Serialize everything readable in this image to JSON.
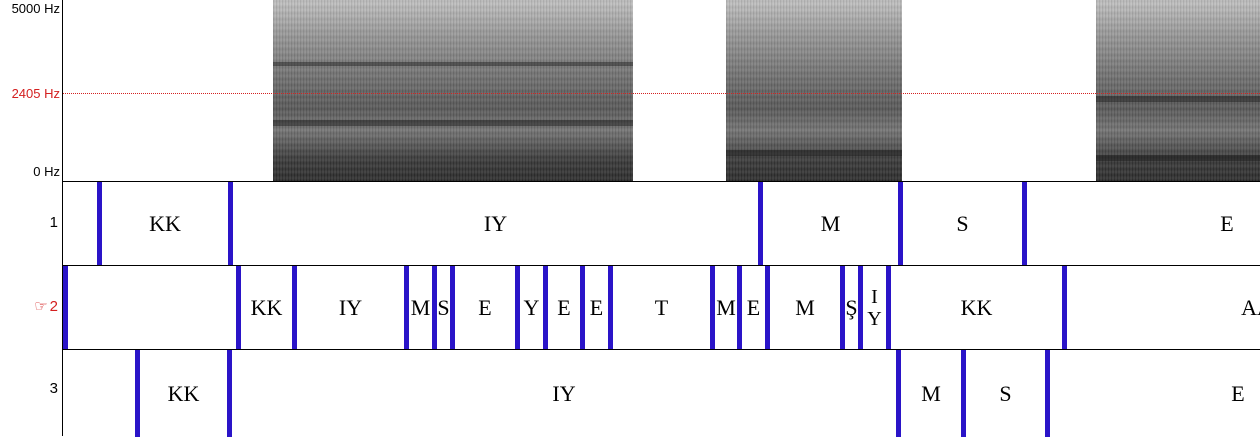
{
  "frequency_axis": {
    "top": "5000 Hz",
    "cursor": "2405 Hz",
    "bottom": "0 Hz"
  },
  "tiers": [
    {
      "number": "1",
      "active": false,
      "intervals": [
        "KK",
        "IY",
        "M",
        "S",
        "E"
      ]
    },
    {
      "number": "2",
      "active": true,
      "marker": "☞",
      "intervals": [
        "KK",
        "IY",
        "M",
        "S",
        "E",
        "Y",
        "E",
        "E",
        "T",
        "M",
        "E",
        "M",
        "Ş",
        "I Y",
        "KK",
        "AA"
      ]
    },
    {
      "number": "3",
      "active": false,
      "intervals": [
        "KK",
        "IY",
        "M",
        "S",
        "E"
      ]
    }
  ],
  "colors": {
    "boundary": "#2a14c8",
    "cursor": "#d42020"
  }
}
